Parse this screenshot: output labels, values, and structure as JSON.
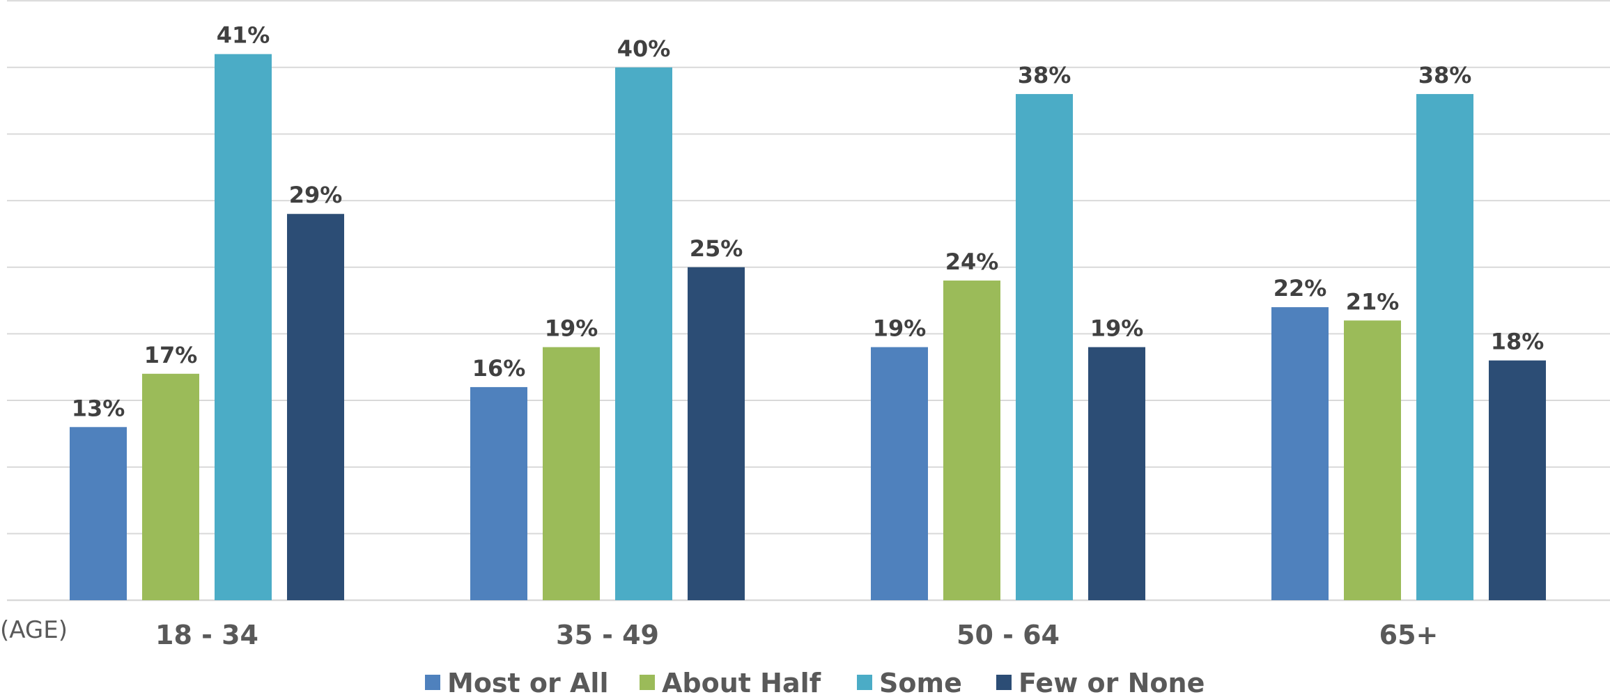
{
  "chart_data": {
    "type": "bar",
    "title": "",
    "xlabel": "(AGE)",
    "ylabel": "",
    "categories": [
      "18 - 34",
      "35 - 49",
      "50 - 64",
      "65+"
    ],
    "series": [
      {
        "name": "Most or All",
        "color": "#4f81bd",
        "values": [
          13,
          16,
          19,
          22
        ],
        "labels": [
          "13%",
          "16%",
          "19%",
          "22%"
        ]
      },
      {
        "name": "About Half",
        "color": "#9bbb59",
        "values": [
          17,
          19,
          24,
          21
        ],
        "labels": [
          "17%",
          "19%",
          "24%",
          "21%"
        ]
      },
      {
        "name": "Some",
        "color": "#4bacc6",
        "values": [
          41,
          40,
          38,
          38
        ],
        "labels": [
          "41%",
          "40%",
          "38%",
          "38%"
        ]
      },
      {
        "name": "Few or None",
        "color": "#2c4d75",
        "values": [
          29,
          25,
          19,
          18
        ],
        "labels": [
          "29%",
          "25%",
          "19%",
          "18%"
        ]
      }
    ],
    "ylim": [
      0,
      45
    ],
    "grid": true,
    "legend_position": "bottom"
  }
}
